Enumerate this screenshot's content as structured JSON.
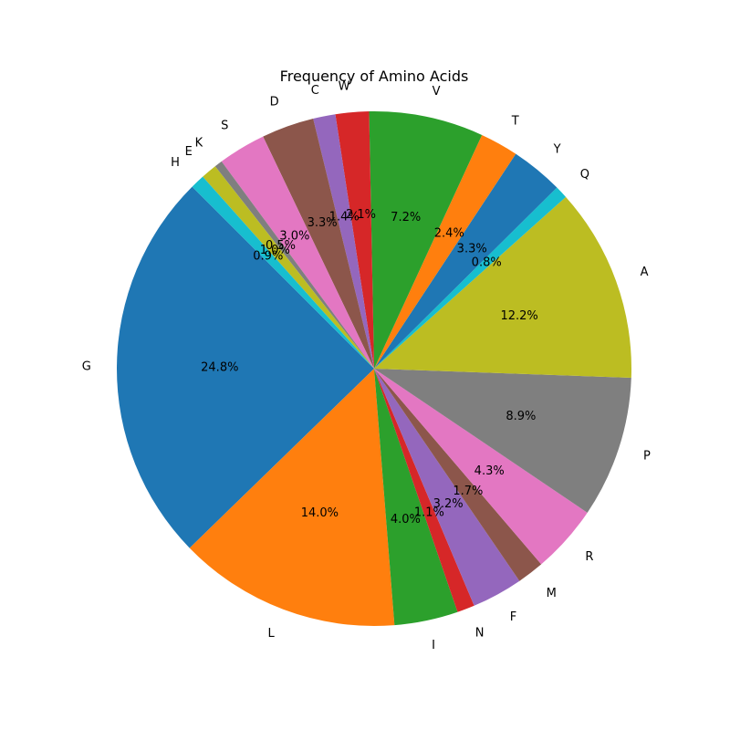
{
  "chart_data": {
    "type": "pie",
    "title": "Frequency of Amino Acids",
    "start_angle_deg": 135,
    "direction": "counterclockwise",
    "slices": [
      {
        "label": "G",
        "value": 24.8,
        "pct_text": "24.8%",
        "color": "#1f77b4"
      },
      {
        "label": "L",
        "value": 14.0,
        "pct_text": "14.0%",
        "color": "#ff7f0e"
      },
      {
        "label": "I",
        "value": 4.0,
        "pct_text": "4.0%",
        "color": "#2ca02c"
      },
      {
        "label": "N",
        "value": 1.1,
        "pct_text": "1.1%",
        "color": "#d62728"
      },
      {
        "label": "F",
        "value": 3.2,
        "pct_text": "3.2%",
        "color": "#9467bd"
      },
      {
        "label": "M",
        "value": 1.7,
        "pct_text": "1.7%",
        "color": "#8c564b"
      },
      {
        "label": "R",
        "value": 4.3,
        "pct_text": "4.3%",
        "color": "#e377c2"
      },
      {
        "label": "P",
        "value": 8.9,
        "pct_text": "8.9%",
        "color": "#7f7f7f"
      },
      {
        "label": "A",
        "value": 12.2,
        "pct_text": "12.2%",
        "color": "#bcbd22"
      },
      {
        "label": "Q",
        "value": 0.8,
        "pct_text": "0.8%",
        "color": "#17becf"
      },
      {
        "label": "Y",
        "value": 3.3,
        "pct_text": "3.3%",
        "color": "#1f77b4"
      },
      {
        "label": "T",
        "value": 2.4,
        "pct_text": "2.4%",
        "color": "#ff7f0e"
      },
      {
        "label": "V",
        "value": 7.2,
        "pct_text": "7.2%",
        "color": "#2ca02c"
      },
      {
        "label": "W",
        "value": 2.1,
        "pct_text": "2.1%",
        "color": "#d62728"
      },
      {
        "label": "C",
        "value": 1.4,
        "pct_text": "1.4%",
        "color": "#9467bd"
      },
      {
        "label": "D",
        "value": 3.3,
        "pct_text": "3.3%",
        "color": "#8c564b"
      },
      {
        "label": "S",
        "value": 3.0,
        "pct_text": "3.0%",
        "color": "#e377c2"
      },
      {
        "label": "K",
        "value": 0.5,
        "pct_text": "0.5%",
        "color": "#7f7f7f"
      },
      {
        "label": "E",
        "value": 1.0,
        "pct_text": "1.0%",
        "color": "#bcbd22"
      },
      {
        "label": "H",
        "value": 0.9,
        "pct_text": "0.9%",
        "color": "#17becf"
      }
    ]
  }
}
